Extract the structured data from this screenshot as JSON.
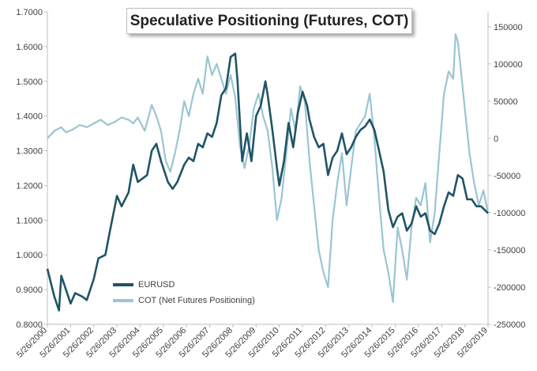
{
  "chart_data": {
    "type": "line",
    "title": "Speculative Positioning (Futures, COT)",
    "left_axis": {
      "ylim": [
        0.8,
        1.7
      ],
      "ticks": [
        "0.8000",
        "0.9000",
        "1.0000",
        "1.1000",
        "1.2000",
        "1.3000",
        "1.4000",
        "1.5000",
        "1.6000",
        "1.7000"
      ]
    },
    "right_axis": {
      "ylim": [
        -250000,
        170000
      ],
      "ticks": [
        "-250000",
        "-200000",
        "-150000",
        "-100000",
        "-50000",
        "0",
        "50000",
        "100000",
        "150000"
      ]
    },
    "x": {
      "range": [
        2000.4,
        2019.4
      ],
      "tick_labels": [
        "5/26/2000",
        "5/26/2001",
        "5/26/2002",
        "5/26/2003",
        "5/26/2004",
        "5/26/2005",
        "5/26/2006",
        "5/26/2007",
        "5/26/2008",
        "5/26/2009",
        "5/26/2010",
        "5/26/2011",
        "5/26/2012",
        "5/26/2013",
        "5/26/2014",
        "5/26/2015",
        "5/26/2016",
        "5/26/2017",
        "5/26/2018",
        "5/26/2019"
      ]
    },
    "series": [
      {
        "name": "EURUSD",
        "axis": "left",
        "color": "#1f5466",
        "points": [
          [
            2000.4,
            0.96
          ],
          [
            2000.7,
            0.88
          ],
          [
            2000.9,
            0.84
          ],
          [
            2001.0,
            0.94
          ],
          [
            2001.2,
            0.9
          ],
          [
            2001.4,
            0.86
          ],
          [
            2001.6,
            0.89
          ],
          [
            2001.9,
            0.88
          ],
          [
            2002.1,
            0.87
          ],
          [
            2002.4,
            0.93
          ],
          [
            2002.6,
            0.99
          ],
          [
            2002.9,
            1.0
          ],
          [
            2003.1,
            1.07
          ],
          [
            2003.4,
            1.17
          ],
          [
            2003.6,
            1.14
          ],
          [
            2003.9,
            1.18
          ],
          [
            2004.1,
            1.26
          ],
          [
            2004.3,
            1.21
          ],
          [
            2004.5,
            1.22
          ],
          [
            2004.7,
            1.23
          ],
          [
            2004.9,
            1.3
          ],
          [
            2005.1,
            1.32
          ],
          [
            2005.3,
            1.27
          ],
          [
            2005.6,
            1.21
          ],
          [
            2005.8,
            1.19
          ],
          [
            2006.0,
            1.21
          ],
          [
            2006.3,
            1.26
          ],
          [
            2006.5,
            1.28
          ],
          [
            2006.7,
            1.27
          ],
          [
            2006.9,
            1.32
          ],
          [
            2007.1,
            1.31
          ],
          [
            2007.3,
            1.35
          ],
          [
            2007.5,
            1.34
          ],
          [
            2007.7,
            1.38
          ],
          [
            2007.9,
            1.46
          ],
          [
            2008.1,
            1.48
          ],
          [
            2008.3,
            1.57
          ],
          [
            2008.5,
            1.58
          ],
          [
            2008.6,
            1.5
          ],
          [
            2008.8,
            1.27
          ],
          [
            2009.0,
            1.35
          ],
          [
            2009.2,
            1.27
          ],
          [
            2009.4,
            1.4
          ],
          [
            2009.6,
            1.43
          ],
          [
            2009.8,
            1.5
          ],
          [
            2009.9,
            1.46
          ],
          [
            2010.1,
            1.36
          ],
          [
            2010.3,
            1.25
          ],
          [
            2010.4,
            1.2
          ],
          [
            2010.6,
            1.27
          ],
          [
            2010.8,
            1.38
          ],
          [
            2011.0,
            1.31
          ],
          [
            2011.2,
            1.41
          ],
          [
            2011.4,
            1.47
          ],
          [
            2011.6,
            1.43
          ],
          [
            2011.7,
            1.39
          ],
          [
            2011.9,
            1.34
          ],
          [
            2012.1,
            1.31
          ],
          [
            2012.3,
            1.32
          ],
          [
            2012.5,
            1.23
          ],
          [
            2012.7,
            1.28
          ],
          [
            2012.9,
            1.3
          ],
          [
            2013.1,
            1.35
          ],
          [
            2013.3,
            1.29
          ],
          [
            2013.5,
            1.31
          ],
          [
            2013.7,
            1.34
          ],
          [
            2013.9,
            1.36
          ],
          [
            2014.1,
            1.37
          ],
          [
            2014.3,
            1.39
          ],
          [
            2014.5,
            1.36
          ],
          [
            2014.7,
            1.3
          ],
          [
            2014.9,
            1.24
          ],
          [
            2015.1,
            1.13
          ],
          [
            2015.3,
            1.08
          ],
          [
            2015.5,
            1.11
          ],
          [
            2015.7,
            1.12
          ],
          [
            2015.9,
            1.07
          ],
          [
            2016.1,
            1.09
          ],
          [
            2016.3,
            1.14
          ],
          [
            2016.5,
            1.11
          ],
          [
            2016.7,
            1.12
          ],
          [
            2016.9,
            1.07
          ],
          [
            2017.1,
            1.06
          ],
          [
            2017.3,
            1.09
          ],
          [
            2017.5,
            1.14
          ],
          [
            2017.7,
            1.18
          ],
          [
            2017.9,
            1.17
          ],
          [
            2018.1,
            1.23
          ],
          [
            2018.3,
            1.22
          ],
          [
            2018.5,
            1.16
          ],
          [
            2018.7,
            1.16
          ],
          [
            2018.9,
            1.14
          ],
          [
            2019.1,
            1.14
          ],
          [
            2019.4,
            1.12
          ]
        ]
      },
      {
        "name": "COT (Net Futures Positioning)",
        "axis": "right",
        "color": "#9ac5d3",
        "points": [
          [
            2000.4,
            0
          ],
          [
            2000.7,
            10000
          ],
          [
            2001.0,
            15000
          ],
          [
            2001.2,
            8000
          ],
          [
            2001.5,
            12000
          ],
          [
            2001.8,
            18000
          ],
          [
            2002.1,
            15000
          ],
          [
            2002.4,
            20000
          ],
          [
            2002.7,
            25000
          ],
          [
            2003.0,
            18000
          ],
          [
            2003.3,
            22000
          ],
          [
            2003.6,
            28000
          ],
          [
            2003.9,
            25000
          ],
          [
            2004.1,
            20000
          ],
          [
            2004.3,
            28000
          ],
          [
            2004.6,
            10000
          ],
          [
            2004.9,
            45000
          ],
          [
            2005.1,
            30000
          ],
          [
            2005.3,
            10000
          ],
          [
            2005.5,
            -30000
          ],
          [
            2005.7,
            -45000
          ],
          [
            2005.9,
            -20000
          ],
          [
            2006.1,
            10000
          ],
          [
            2006.3,
            50000
          ],
          [
            2006.5,
            30000
          ],
          [
            2006.7,
            60000
          ],
          [
            2006.9,
            80000
          ],
          [
            2007.1,
            60000
          ],
          [
            2007.3,
            110000
          ],
          [
            2007.5,
            85000
          ],
          [
            2007.7,
            100000
          ],
          [
            2007.9,
            80000
          ],
          [
            2008.1,
            60000
          ],
          [
            2008.3,
            85000
          ],
          [
            2008.5,
            55000
          ],
          [
            2008.7,
            -10000
          ],
          [
            2008.9,
            -40000
          ],
          [
            2009.1,
            -10000
          ],
          [
            2009.3,
            40000
          ],
          [
            2009.5,
            60000
          ],
          [
            2009.7,
            30000
          ],
          [
            2009.9,
            10000
          ],
          [
            2010.1,
            -40000
          ],
          [
            2010.3,
            -110000
          ],
          [
            2010.5,
            -80000
          ],
          [
            2010.7,
            -20000
          ],
          [
            2010.9,
            40000
          ],
          [
            2011.1,
            10000
          ],
          [
            2011.3,
            70000
          ],
          [
            2011.5,
            50000
          ],
          [
            2011.7,
            -30000
          ],
          [
            2011.9,
            -90000
          ],
          [
            2012.1,
            -150000
          ],
          [
            2012.3,
            -180000
          ],
          [
            2012.5,
            -200000
          ],
          [
            2012.7,
            -110000
          ],
          [
            2012.9,
            -60000
          ],
          [
            2013.1,
            -20000
          ],
          [
            2013.3,
            -90000
          ],
          [
            2013.5,
            -40000
          ],
          [
            2013.7,
            10000
          ],
          [
            2013.9,
            20000
          ],
          [
            2014.1,
            30000
          ],
          [
            2014.3,
            60000
          ],
          [
            2014.5,
            0
          ],
          [
            2014.7,
            -80000
          ],
          [
            2014.9,
            -150000
          ],
          [
            2015.1,
            -180000
          ],
          [
            2015.3,
            -220000
          ],
          [
            2015.5,
            -120000
          ],
          [
            2015.7,
            -150000
          ],
          [
            2015.9,
            -190000
          ],
          [
            2016.1,
            -120000
          ],
          [
            2016.3,
            -80000
          ],
          [
            2016.5,
            -90000
          ],
          [
            2016.7,
            -60000
          ],
          [
            2016.9,
            -140000
          ],
          [
            2017.1,
            -100000
          ],
          [
            2017.3,
            -20000
          ],
          [
            2017.5,
            60000
          ],
          [
            2017.7,
            90000
          ],
          [
            2017.9,
            80000
          ],
          [
            2018.0,
            140000
          ],
          [
            2018.1,
            130000
          ],
          [
            2018.2,
            100000
          ],
          [
            2018.4,
            40000
          ],
          [
            2018.6,
            -20000
          ],
          [
            2018.8,
            -60000
          ],
          [
            2019.0,
            -90000
          ],
          [
            2019.2,
            -70000
          ],
          [
            2019.4,
            -100000
          ]
        ]
      }
    ],
    "grid": false,
    "legend_position": "bottom-left"
  }
}
